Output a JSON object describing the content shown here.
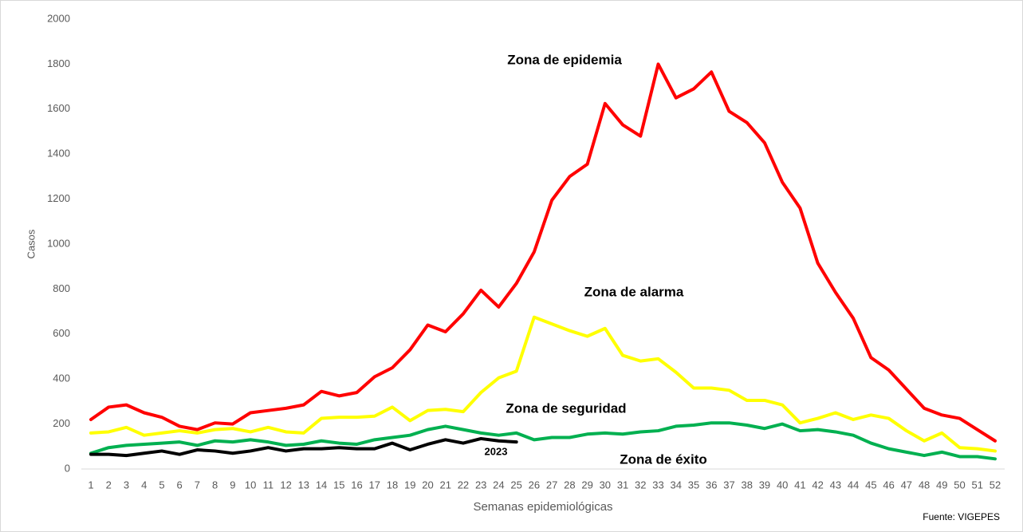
{
  "chart_data": {
    "type": "line",
    "y_label": "Casos",
    "x_label": "Semanas epidemiológicas",
    "source": "Fuente: VIGEPES",
    "categories": [
      "1",
      "2",
      "3",
      "4",
      "5",
      "6",
      "7",
      "8",
      "9",
      "10",
      "11",
      "12",
      "13",
      "14",
      "15",
      "16",
      "17",
      "18",
      "19",
      "20",
      "21",
      "22",
      "23",
      "24",
      "25",
      "26",
      "27",
      "28",
      "29",
      "30",
      "31",
      "32",
      "33",
      "34",
      "35",
      "36",
      "37",
      "38",
      "39",
      "40",
      "41",
      "42",
      "43",
      "44",
      "45",
      "46",
      "47",
      "48",
      "49",
      "50",
      "51",
      "52"
    ],
    "ylim": [
      0,
      2000
    ],
    "yticks": [
      0,
      200,
      400,
      600,
      800,
      1000,
      1200,
      1400,
      1600,
      1800,
      2000
    ],
    "series": [
      {
        "name": "Zona de epidemia",
        "color": "#ff0000",
        "values": [
          220,
          275,
          285,
          250,
          230,
          190,
          175,
          205,
          200,
          250,
          260,
          270,
          285,
          345,
          325,
          340,
          410,
          450,
          530,
          640,
          610,
          690,
          795,
          720,
          825,
          965,
          1195,
          1300,
          1355,
          1625,
          1530,
          1480,
          1800,
          1650,
          1690,
          1765,
          1590,
          1540,
          1450,
          1275,
          1160,
          915,
          785,
          670,
          495,
          440,
          355,
          270,
          240,
          225,
          175,
          125
        ]
      },
      {
        "name": "Zona de alarma",
        "color": "#ffff00",
        "values": [
          160,
          165,
          185,
          150,
          160,
          170,
          160,
          175,
          180,
          165,
          185,
          165,
          160,
          225,
          230,
          230,
          235,
          275,
          215,
          260,
          265,
          255,
          340,
          405,
          435,
          675,
          645,
          615,
          590,
          625,
          505,
          480,
          490,
          430,
          360,
          360,
          350,
          305,
          305,
          285,
          205,
          225,
          250,
          220,
          240,
          225,
          170,
          125,
          160,
          95,
          90,
          80
        ]
      },
      {
        "name": "Zona de seguridad",
        "color": "#00b050",
        "values": [
          70,
          95,
          105,
          110,
          115,
          120,
          105,
          125,
          120,
          130,
          120,
          105,
          110,
          125,
          115,
          110,
          130,
          140,
          150,
          175,
          190,
          175,
          160,
          150,
          160,
          130,
          140,
          140,
          155,
          160,
          155,
          165,
          170,
          190,
          195,
          205,
          205,
          195,
          180,
          200,
          170,
          175,
          165,
          150,
          115,
          90,
          75,
          60,
          75,
          55,
          55,
          45
        ]
      },
      {
        "name": "2023",
        "color": "#000000",
        "values": [
          65,
          65,
          60,
          70,
          80,
          65,
          85,
          80,
          70,
          80,
          95,
          80,
          90,
          90,
          95,
          90,
          90,
          115,
          85,
          110,
          130,
          115,
          135,
          125,
          120,
          null,
          null,
          null,
          null,
          null,
          null,
          null,
          null,
          null,
          null,
          null,
          null,
          null,
          null,
          null,
          null,
          null,
          null,
          null,
          null,
          null,
          null,
          null,
          null,
          null,
          null,
          null
        ]
      }
    ],
    "annotation": "Zona de éxito"
  }
}
